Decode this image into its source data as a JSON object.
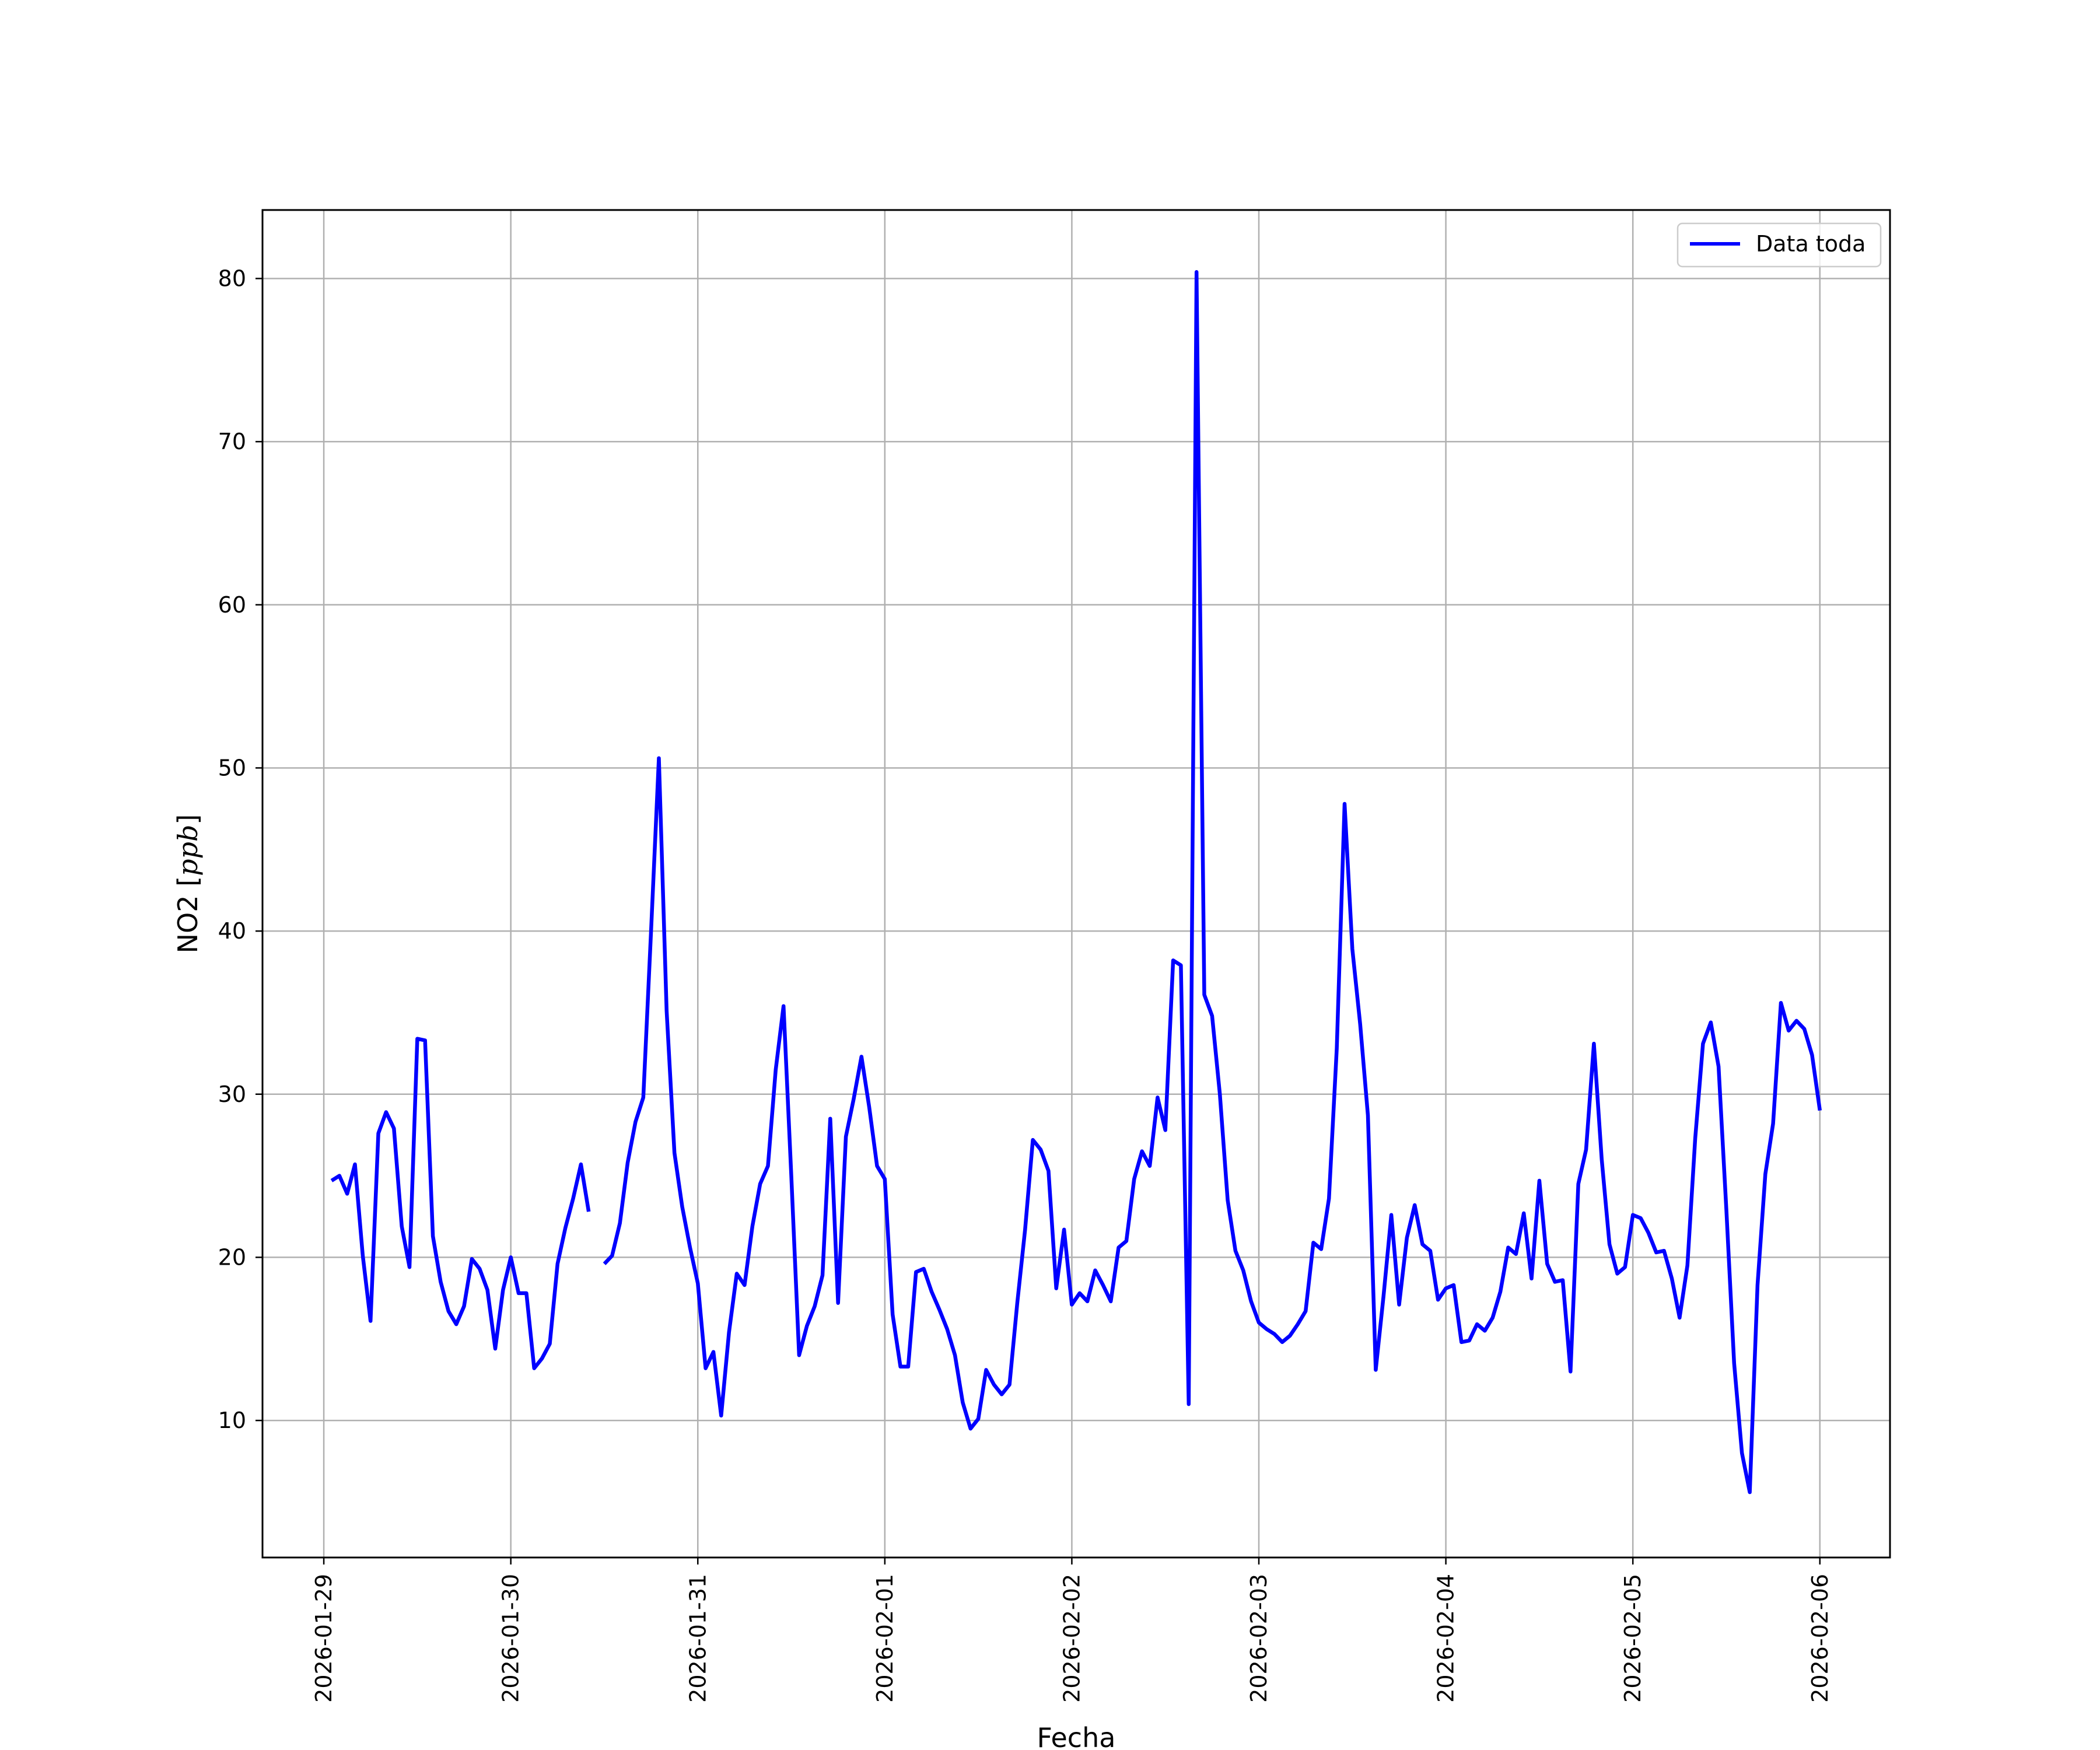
{
  "chart_data": {
    "type": "line",
    "xlabel": "Fecha",
    "ylabel": "NO2 [ppb]",
    "ylabel_main": "NO2 [",
    "ylabel_unit": "ppb",
    "ylabel_close": "]",
    "grid": true,
    "legend_position": "top-right",
    "x_range": [
      "2026-01-28 16:08",
      "2026-02-06 09:00"
    ],
    "ylim": [
      1.6,
      84.2
    ],
    "y_ticks": [
      10,
      20,
      30,
      40,
      50,
      60,
      70,
      80
    ],
    "x_ticks": [
      "2026-01-29",
      "2026-01-30",
      "2026-01-31",
      "2026-02-01",
      "2026-02-02",
      "2026-02-03",
      "2026-02-04",
      "2026-02-05",
      "2026-02-06"
    ],
    "series": [
      {
        "name": "Data toda",
        "color": "#0000ff",
        "x": [
          "2026-01-29 01:00",
          "2026-01-29 02:00",
          "2026-01-29 03:00",
          "2026-01-29 04:00",
          "2026-01-29 05:00",
          "2026-01-29 06:00",
          "2026-01-29 07:00",
          "2026-01-29 08:00",
          "2026-01-29 09:00",
          "2026-01-29 10:00",
          "2026-01-29 11:00",
          "2026-01-29 12:00",
          "2026-01-29 13:00",
          "2026-01-29 14:00",
          "2026-01-29 15:00",
          "2026-01-29 16:00",
          "2026-01-29 17:00",
          "2026-01-29 18:00",
          "2026-01-29 19:00",
          "2026-01-29 20:00",
          "2026-01-29 21:00",
          "2026-01-29 22:00",
          "2026-01-29 23:00",
          "2026-01-30 00:00",
          "2026-01-30 01:00",
          "2026-01-30 02:00",
          "2026-01-30 03:00",
          "2026-01-30 04:00",
          "2026-01-30 05:00",
          "2026-01-30 06:00",
          "2026-01-30 07:00",
          "2026-01-30 08:00",
          "2026-01-30 09:00",
          "2026-01-30 10:00",
          "2026-01-30 11:00",
          "2026-01-30 12:00",
          "2026-01-30 13:00",
          "2026-01-30 14:00",
          "2026-01-30 15:00",
          "2026-01-30 16:00",
          "2026-01-30 17:00",
          "2026-01-30 18:00",
          "2026-01-30 19:00",
          "2026-01-30 20:00",
          "2026-01-30 21:00",
          "2026-01-30 22:00",
          "2026-01-30 23:00",
          "2026-01-31 00:00",
          "2026-01-31 01:00",
          "2026-01-31 02:00",
          "2026-01-31 03:00",
          "2026-01-31 04:00",
          "2026-01-31 05:00",
          "2026-01-31 06:00",
          "2026-01-31 07:00",
          "2026-01-31 08:00",
          "2026-01-31 09:00",
          "2026-01-31 10:00",
          "2026-01-31 11:00",
          "2026-01-31 12:00",
          "2026-01-31 13:00",
          "2026-01-31 14:00",
          "2026-01-31 15:00",
          "2026-01-31 16:00",
          "2026-01-31 17:00",
          "2026-01-31 18:00",
          "2026-01-31 19:00",
          "2026-01-31 20:00",
          "2026-01-31 21:00",
          "2026-01-31 22:00",
          "2026-01-31 23:00",
          "2026-02-01 00:00",
          "2026-02-01 01:00",
          "2026-02-01 02:00",
          "2026-02-01 03:00",
          "2026-02-01 04:00",
          "2026-02-01 05:00",
          "2026-02-01 06:00",
          "2026-02-01 07:00",
          "2026-02-01 08:00",
          "2026-02-01 09:00",
          "2026-02-01 10:00",
          "2026-02-01 11:00",
          "2026-02-01 12:00",
          "2026-02-01 13:00",
          "2026-02-01 14:00",
          "2026-02-01 15:00",
          "2026-02-01 16:00",
          "2026-02-01 17:00",
          "2026-02-01 18:00",
          "2026-02-01 19:00",
          "2026-02-01 20:00",
          "2026-02-01 21:00",
          "2026-02-01 22:00",
          "2026-02-01 23:00",
          "2026-02-02 00:00",
          "2026-02-02 01:00",
          "2026-02-02 02:00",
          "2026-02-02 03:00",
          "2026-02-02 04:00",
          "2026-02-02 05:00",
          "2026-02-02 06:00",
          "2026-02-02 07:00",
          "2026-02-02 08:00",
          "2026-02-02 09:00",
          "2026-02-02 10:00",
          "2026-02-02 11:00",
          "2026-02-02 12:00",
          "2026-02-02 13:00",
          "2026-02-02 14:00",
          "2026-02-02 15:00",
          "2026-02-02 16:00",
          "2026-02-02 17:00",
          "2026-02-02 18:00",
          "2026-02-02 19:00",
          "2026-02-02 20:00",
          "2026-02-02 21:00",
          "2026-02-02 22:00",
          "2026-02-02 23:00",
          "2026-02-03 00:00",
          "2026-02-03 01:00",
          "2026-02-03 02:00",
          "2026-02-03 03:00",
          "2026-02-03 04:00",
          "2026-02-03 05:00",
          "2026-02-03 06:00",
          "2026-02-03 07:00",
          "2026-02-03 08:00",
          "2026-02-03 09:00",
          "2026-02-03 10:00",
          "2026-02-03 11:00",
          "2026-02-03 12:00",
          "2026-02-03 13:00",
          "2026-02-03 14:00",
          "2026-02-03 15:00",
          "2026-02-03 16:00",
          "2026-02-03 17:00",
          "2026-02-03 18:00",
          "2026-02-03 19:00",
          "2026-02-03 20:00",
          "2026-02-03 21:00",
          "2026-02-03 22:00",
          "2026-02-03 23:00",
          "2026-02-04 00:00",
          "2026-02-04 01:00",
          "2026-02-04 02:00",
          "2026-02-04 03:00",
          "2026-02-04 04:00",
          "2026-02-04 05:00",
          "2026-02-04 06:00",
          "2026-02-04 07:00",
          "2026-02-04 08:00",
          "2026-02-04 09:00",
          "2026-02-04 10:00",
          "2026-02-04 11:00",
          "2026-02-04 12:00",
          "2026-02-04 13:00",
          "2026-02-04 14:00",
          "2026-02-04 15:00",
          "2026-02-04 16:00",
          "2026-02-04 17:00",
          "2026-02-04 18:00",
          "2026-02-04 19:00",
          "2026-02-04 20:00",
          "2026-02-04 21:00",
          "2026-02-04 22:00",
          "2026-02-04 23:00",
          "2026-02-05 00:00",
          "2026-02-05 01:00",
          "2026-02-05 02:00",
          "2026-02-05 03:00",
          "2026-02-05 04:00",
          "2026-02-05 05:00",
          "2026-02-05 06:00",
          "2026-02-05 07:00",
          "2026-02-05 08:00",
          "2026-02-05 09:00",
          "2026-02-05 10:00",
          "2026-02-05 11:00",
          "2026-02-05 12:00",
          "2026-02-05 13:00",
          "2026-02-05 14:00",
          "2026-02-05 15:00",
          "2026-02-05 16:00",
          "2026-02-05 17:00",
          "2026-02-05 18:00",
          "2026-02-05 19:00",
          "2026-02-05 20:00",
          "2026-02-05 21:00",
          "2026-02-05 22:00",
          "2026-02-05 23:00",
          "2026-02-06 00:00"
        ],
        "y": [
          24.7,
          25.0,
          23.9,
          25.7,
          20.1,
          16.1,
          27.6,
          28.9,
          27.9,
          21.9,
          19.4,
          33.4,
          33.3,
          21.3,
          18.5,
          16.7,
          15.9,
          17.0,
          19.9,
          19.3,
          18.0,
          14.4,
          18.0,
          20.0,
          17.8,
          17.8,
          13.2,
          13.8,
          14.7,
          19.6,
          21.8,
          23.6,
          25.7,
          22.8,
          null,
          19.6,
          20.1,
          22.1,
          25.8,
          28.3,
          29.8,
          40.0,
          50.6,
          35.1,
          26.4,
          23.1,
          20.6,
          18.4,
          13.2,
          14.2,
          10.3,
          15.4,
          19.0,
          18.3,
          21.9,
          24.5,
          25.6,
          31.5,
          35.4,
          25.0,
          14.0,
          15.8,
          17.0,
          18.9,
          28.5,
          17.2,
          27.4,
          29.7,
          32.3,
          29.2,
          25.6,
          24.8,
          16.5,
          13.3,
          13.3,
          19.1,
          19.3,
          17.9,
          16.8,
          15.6,
          14.0,
          11.1,
          9.5,
          10.1,
          13.1,
          12.2,
          11.6,
          12.2,
          17.2,
          21.7,
          27.2,
          26.6,
          25.3,
          18.1,
          21.7,
          17.1,
          17.8,
          17.3,
          19.2,
          18.3,
          17.3,
          20.6,
          21.0,
          24.8,
          26.5,
          25.6,
          29.8,
          27.8,
          38.2,
          37.9,
          11.0,
          80.4,
          36.1,
          34.8,
          30.0,
          23.5,
          20.4,
          19.2,
          17.3,
          16.0,
          15.6,
          15.3,
          14.8,
          15.2,
          15.9,
          16.7,
          20.9,
          20.5,
          23.6,
          32.8,
          47.8,
          38.9,
          34.3,
          28.7,
          13.1,
          17.6,
          22.6,
          17.1,
          21.2,
          23.2,
          20.8,
          20.4,
          17.4,
          18.1,
          18.3,
          14.8,
          14.9,
          15.9,
          15.5,
          16.3,
          17.9,
          20.6,
          20.2,
          22.7,
          18.7,
          24.7,
          19.6,
          18.5,
          18.6,
          13.0,
          24.5,
          26.6,
          33.1,
          26.0,
          20.8,
          19.0,
          19.4,
          22.6,
          22.4,
          21.5,
          20.3,
          20.4,
          18.7,
          16.3,
          19.5,
          27.3,
          33.1,
          34.4,
          31.7,
          22.9,
          13.5,
          8.0,
          5.6,
          18.3,
          25.1,
          28.2,
          35.6,
          33.9,
          34.5,
          34.0,
          32.4,
          29.0
        ]
      }
    ]
  }
}
